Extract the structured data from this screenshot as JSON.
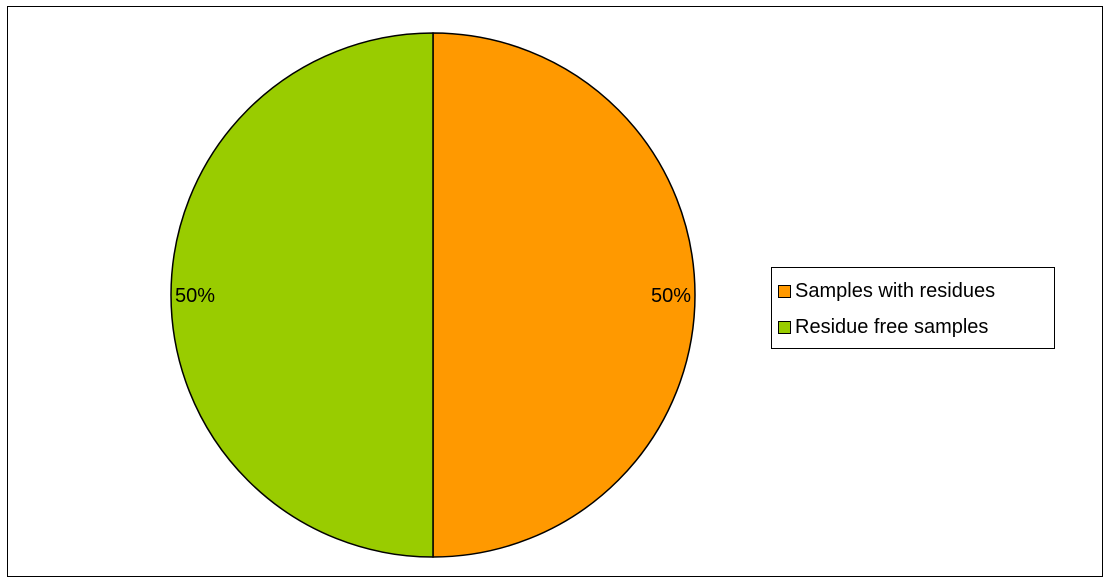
{
  "chart_data": {
    "type": "pie",
    "title": "",
    "slices": [
      {
        "label": "Samples with residues",
        "value": 50,
        "display": "50%",
        "color": "#ff9900"
      },
      {
        "label": "Residue free samples",
        "value": 50,
        "display": "50%",
        "color": "#99cc00"
      }
    ],
    "start_angle": "12 o'clock, clockwise",
    "legend_position": "right"
  }
}
